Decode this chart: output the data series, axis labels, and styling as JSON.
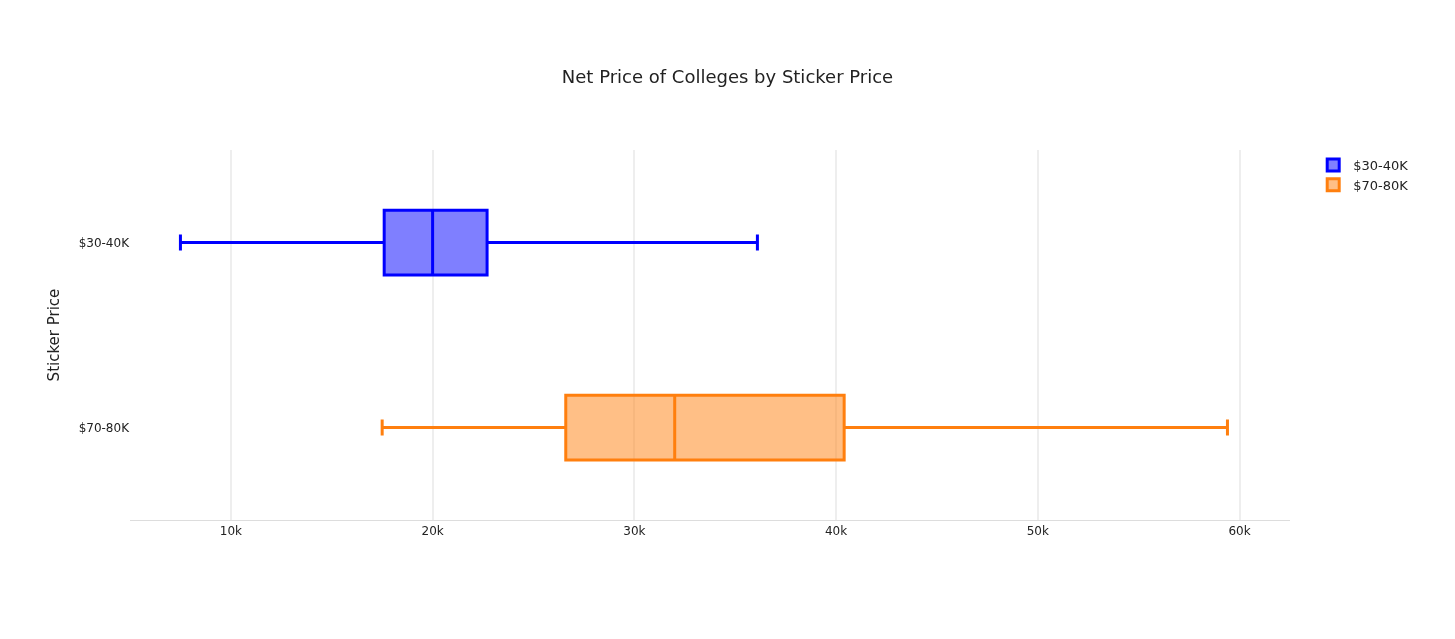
{
  "chart_data": {
    "type": "box",
    "orientation": "horizontal",
    "title": "Net Price of Colleges by Sticker Price",
    "ylabel": "Sticker Price",
    "categories": [
      "$30-40K",
      "$70-80K"
    ],
    "series": [
      {
        "name": "$30-40K",
        "color": "#0000ff",
        "boxes": [
          {
            "low": 7500,
            "q1": 17600,
            "median": 20000,
            "q3": 22700,
            "high": 36100
          },
          null
        ]
      },
      {
        "name": "$70-80K",
        "color": "#ff7f0e",
        "boxes": [
          null,
          {
            "low": 17500,
            "q1": 26600,
            "median": 32000,
            "q3": 40400,
            "high": 59400
          }
        ]
      }
    ],
    "xticks": [
      {
        "value": 10000,
        "label": "10k"
      },
      {
        "value": 20000,
        "label": "20k"
      },
      {
        "value": 30000,
        "label": "30k"
      },
      {
        "value": 40000,
        "label": "40k"
      },
      {
        "value": 50000,
        "label": "50k"
      },
      {
        "value": 60000,
        "label": "60k"
      }
    ],
    "xlim": [
      5000,
      62500
    ],
    "grid": "x",
    "legend": "top right"
  }
}
